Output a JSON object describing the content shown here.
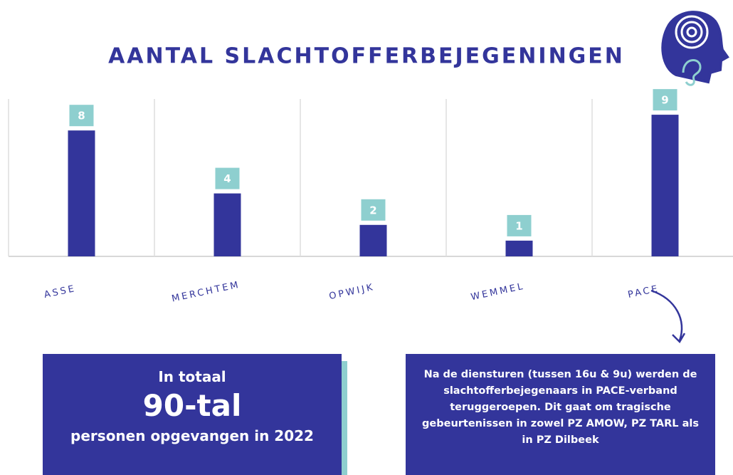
{
  "chart_data": {
    "type": "bar",
    "title": "AANTAL SLACHTOFFERBEJEGENINGEN",
    "categories": [
      "ASSE",
      "MERCHTEM",
      "OPWIJK",
      "WEMMEL",
      "PACE"
    ],
    "values": [
      8,
      4,
      2,
      1,
      9
    ],
    "color": "#33359b",
    "label_color": "#8ecfcf",
    "ylim": [
      0,
      10
    ]
  },
  "total_box": {
    "line1": "In totaal",
    "big": "90-tal",
    "line2": "personen opgevangen in 2022"
  },
  "note_box": {
    "text": "Na de diensturen (tussen 16u & 9u) werden de slachtofferbejegenaars in PACE-verband teruggeroepen. Dit gaat om tragische gebeurtenissen in zowel PZ AMOW, PZ TARL als in PZ Dilbeek"
  }
}
